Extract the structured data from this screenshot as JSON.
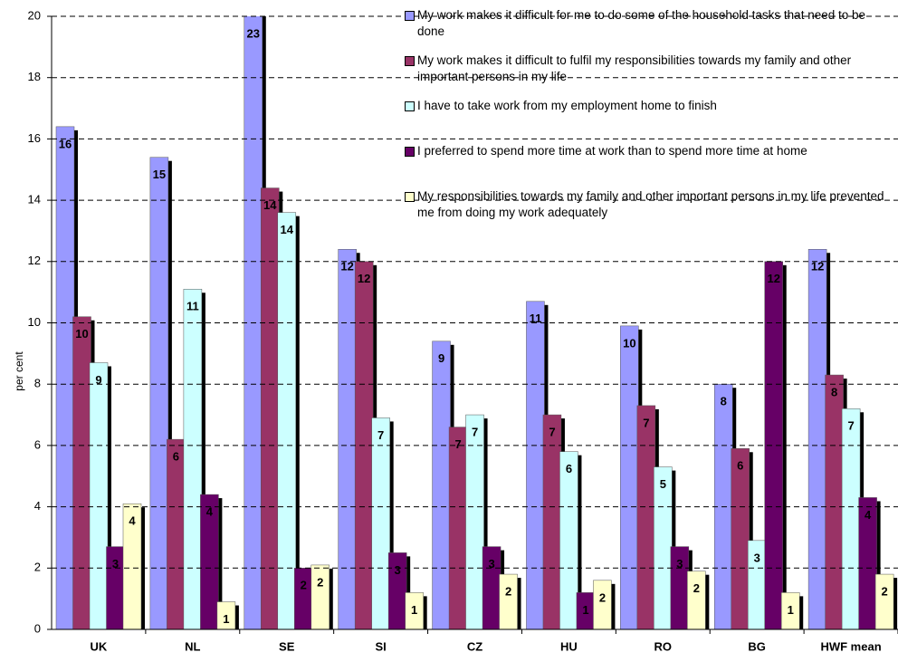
{
  "chart_data": {
    "type": "bar",
    "y_label": "per cent",
    "categories": [
      "UK",
      "NL",
      "SE",
      "SI",
      "CZ",
      "HU",
      "RO",
      "BG",
      "HWF mean"
    ],
    "ylim": [
      0,
      20
    ],
    "yticks": [
      0,
      2,
      4,
      6,
      8,
      10,
      12,
      14,
      16,
      18,
      20
    ],
    "grid": true,
    "series": [
      {
        "name": "My work makes it difficult for me to do some of the household tasks that need to be done",
        "color": "#9999ff",
        "values": [
          16.4,
          15.4,
          23,
          12.4,
          9.4,
          10.7,
          9.9,
          8.0,
          12.4
        ],
        "value_labels": [
          "16",
          "15",
          "23",
          "12",
          "9",
          "11",
          "10",
          "8",
          "12"
        ]
      },
      {
        "name": "My work makes it difficult to fulfil my responsibilities towards my family and other important persons in my life",
        "color": "#993366",
        "values": [
          10.2,
          6.2,
          14.4,
          12.0,
          6.6,
          7.0,
          7.3,
          5.9,
          8.3
        ],
        "value_labels": [
          "10",
          "6",
          "14",
          "12",
          "7",
          "7",
          "7",
          "6",
          "8"
        ]
      },
      {
        "name": "I have to take work from my employment home to finish",
        "color": "#ccffff",
        "values": [
          8.7,
          11.1,
          13.6,
          6.9,
          7.0,
          5.8,
          5.3,
          2.9,
          7.2
        ],
        "value_labels": [
          "9",
          "11",
          "14",
          "7",
          "7",
          "6",
          "5",
          "3",
          "7"
        ]
      },
      {
        "name": "I preferred to spend more time at work than to spend more time at home",
        "color": "#660066",
        "values": [
          2.7,
          4.4,
          2.0,
          2.5,
          2.7,
          1.2,
          2.7,
          12.0,
          4.3
        ],
        "value_labels": [
          "3",
          "4",
          "2",
          "3",
          "3",
          "1",
          "3",
          "12",
          "4"
        ]
      },
      {
        "name": "My responsibilities towards my family and other important persons in my life prevented me from doing my work adequately",
        "color": "#ffffcc",
        "values": [
          4.1,
          0.9,
          2.1,
          1.2,
          1.8,
          1.6,
          1.9,
          1.2,
          1.8
        ],
        "value_labels": [
          "4",
          "1",
          "2",
          "1",
          "2",
          "2",
          "2",
          "1",
          "2"
        ]
      }
    ]
  }
}
